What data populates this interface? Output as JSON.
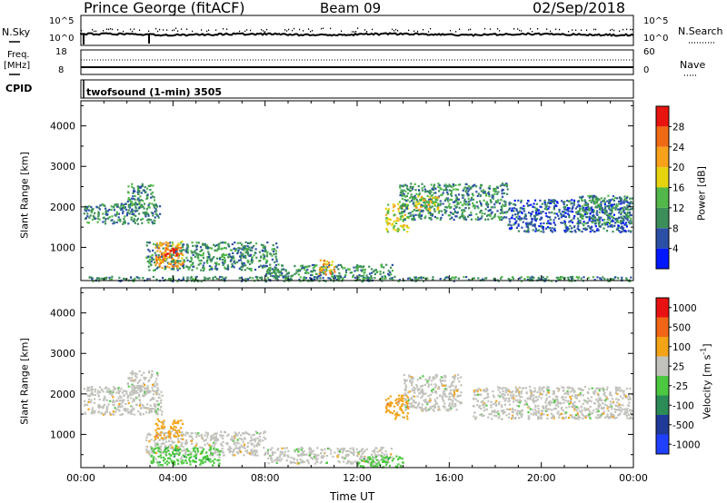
{
  "header": {
    "station": "Prince George (fitACF)",
    "beam": "Beam 09",
    "date": "02/Sep/2018"
  },
  "noise_panel": {
    "left_label": "N.Sky",
    "left_ticks": [
      "10^5",
      "10^0"
    ],
    "right_ticks": [
      "10^5",
      "10^0"
    ],
    "right_label": "N.Search"
  },
  "freq_panel": {
    "left_label_1": "Freq.",
    "left_label_2": "[MHz]",
    "left_ticks": [
      "18",
      "8"
    ],
    "right_ticks": [
      "60",
      "0"
    ],
    "right_label": "Nave"
  },
  "cpid_panel": {
    "label": "CPID",
    "program": "twofsound (1-min) 3505"
  },
  "colors": {
    "power_scale": [
      "#0018ff",
      "#2c4fa6",
      "#3c8f5a",
      "#52b84a",
      "#e6d410",
      "#f7a21a",
      "#f06a16",
      "#e8140e"
    ],
    "velocity_scale": [
      "#2040ff",
      "#203a9a",
      "#2b8c58",
      "#4cc840",
      "#c2c2bc",
      "#f3a316",
      "#f06616",
      "#e81212"
    ]
  },
  "chart_data": [
    {
      "type": "heatmap",
      "title": "",
      "quantity": "Power",
      "xlabel": "",
      "ylabel": "Slant Range [km]",
      "xlim": [
        0,
        24
      ],
      "ylim": [
        180,
        4620
      ],
      "x_ticks": [
        "00:00",
        "04:00",
        "08:00",
        "12:00",
        "16:00",
        "20:00",
        "00:00"
      ],
      "y_ticks": [
        "1000",
        "2000",
        "3000",
        "4000"
      ],
      "colorbar": {
        "label": "Power [dB]",
        "range": [
          0,
          32
        ],
        "ticks": [
          "4",
          "8",
          "12",
          "16",
          "20",
          "24",
          "28"
        ]
      },
      "regions": [
        {
          "t0": 0.1,
          "t1": 3.4,
          "r0": 1600,
          "r1": 2100,
          "level": 2
        },
        {
          "t0": 2.0,
          "t1": 3.2,
          "r0": 2000,
          "r1": 2600,
          "level": 2
        },
        {
          "t0": 2.8,
          "t1": 8.5,
          "r0": 450,
          "r1": 1150,
          "level": 2
        },
        {
          "t0": 3.2,
          "t1": 4.4,
          "r0": 500,
          "r1": 1200,
          "level": 5
        },
        {
          "t0": 3.6,
          "t1": 4.2,
          "r0": 800,
          "r1": 1000,
          "level": 7
        },
        {
          "t0": 8.0,
          "t1": 13.5,
          "r0": 250,
          "r1": 600,
          "level": 2
        },
        {
          "t0": 10.3,
          "t1": 11.0,
          "r0": 350,
          "r1": 700,
          "level": 5
        },
        {
          "t0": 13.2,
          "t1": 14.2,
          "r0": 1400,
          "r1": 2100,
          "level": 4
        },
        {
          "t0": 13.8,
          "t1": 18.5,
          "r0": 1700,
          "r1": 2600,
          "level": 2
        },
        {
          "t0": 14.5,
          "t1": 15.5,
          "r0": 1900,
          "r1": 2300,
          "level": 4
        },
        {
          "t0": 18.5,
          "t1": 23.9,
          "r0": 1400,
          "r1": 2200,
          "level": 1
        },
        {
          "t0": 21.5,
          "t1": 23.9,
          "r0": 1600,
          "r1": 2300,
          "level": 2
        },
        {
          "t0": 0.1,
          "t1": 23.9,
          "r0": 180,
          "r1": 300,
          "level": 2
        }
      ]
    },
    {
      "type": "heatmap",
      "title": "",
      "quantity": "Velocity",
      "xlabel": "Time UT",
      "ylabel": "Slant Range [km]",
      "xlim": [
        0,
        24
      ],
      "ylim": [
        180,
        4620
      ],
      "x_ticks": [
        "00:00",
        "04:00",
        "08:00",
        "12:00",
        "16:00",
        "20:00",
        "00:00"
      ],
      "y_ticks": [
        "1000",
        "2000",
        "3000",
        "4000"
      ],
      "colorbar": {
        "label": "Velocity [m s^-1]",
        "ticks": [
          "1000",
          "500",
          "100",
          "25",
          "-25",
          "-100",
          "-500",
          "-1000"
        ]
      },
      "regions": [
        {
          "t0": 0.1,
          "t1": 3.5,
          "r0": 1500,
          "r1": 2200,
          "level": 4
        },
        {
          "t0": 2.0,
          "t1": 3.3,
          "r0": 2000,
          "r1": 2600,
          "level": 4
        },
        {
          "t0": 2.8,
          "t1": 8.0,
          "r0": 500,
          "r1": 1100,
          "level": 4
        },
        {
          "t0": 3.2,
          "t1": 4.4,
          "r0": 900,
          "r1": 1400,
          "level": 5
        },
        {
          "t0": 3.0,
          "t1": 6.0,
          "r0": 250,
          "r1": 700,
          "level": 3
        },
        {
          "t0": 8.0,
          "t1": 13.5,
          "r0": 300,
          "r1": 700,
          "level": 4
        },
        {
          "t0": 12.0,
          "t1": 14.0,
          "r0": 200,
          "r1": 500,
          "level": 3
        },
        {
          "t0": 13.2,
          "t1": 14.2,
          "r0": 1400,
          "r1": 2000,
          "level": 5
        },
        {
          "t0": 14.0,
          "t1": 16.5,
          "r0": 1600,
          "r1": 2500,
          "level": 4
        },
        {
          "t0": 17.0,
          "t1": 23.9,
          "r0": 1400,
          "r1": 2200,
          "level": 4
        }
      ]
    }
  ]
}
